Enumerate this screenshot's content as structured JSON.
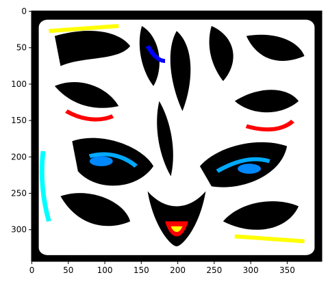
{
  "chart_data": {
    "type": "image",
    "xlim": [
      -0.5,
      397.5
    ],
    "ylim": [
      343.5,
      -0.5
    ],
    "xticks": [
      0,
      50,
      100,
      150,
      200,
      250,
      300,
      350
    ],
    "yticks": [
      0,
      50,
      100,
      150,
      200,
      250,
      300
    ]
  }
}
